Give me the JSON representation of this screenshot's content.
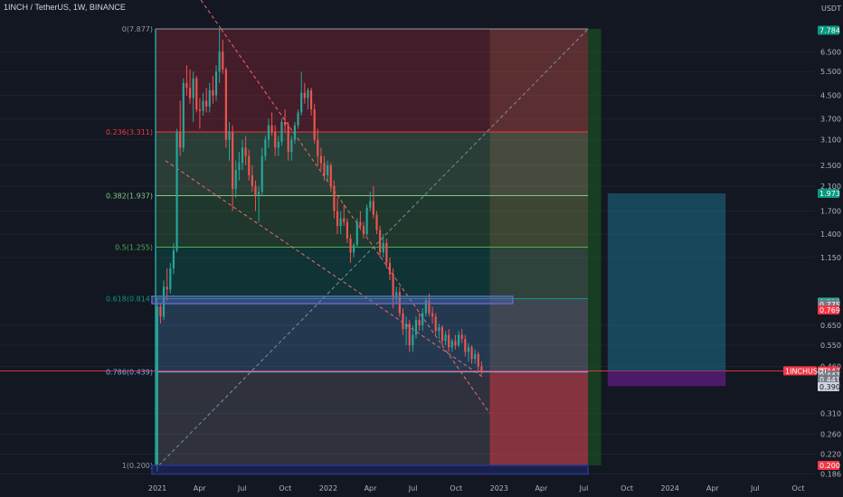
{
  "header": {
    "symbol": "1INCH / TetherUS",
    "separator": ", ",
    "interval": "1W",
    "exchange": "BINANCE"
  },
  "price_axis": {
    "currency": "USDT",
    "ticks": [
      "6.500",
      "5.500",
      "4.500",
      "3.700",
      "3.100",
      "2.500",
      "2.100",
      "1.700",
      "1.400",
      "1.150",
      "0.650",
      "0.550",
      "0.460",
      "0.310",
      "0.260",
      "0.220",
      "0.186"
    ]
  },
  "time_axis": {
    "labels": [
      "2021",
      "Apr",
      "Jul",
      "Oct",
      "2022",
      "Apr",
      "Jul",
      "Oct",
      "2023",
      "Apr",
      "Jul",
      "Oct",
      "2024",
      "Apr",
      "Jul",
      "Oct"
    ]
  },
  "fib_levels": [
    {
      "label": "0(7.877)",
      "price": 7.877,
      "color": "#9598a1"
    },
    {
      "label": "0.236(3.311)",
      "price": 3.311,
      "color": "#f23645"
    },
    {
      "label": "0.382(1.937)",
      "price": 1.937,
      "color": "#81c784"
    },
    {
      "label": "0.5(1.255)",
      "price": 1.255,
      "color": "#4caf50"
    },
    {
      "label": "0.618(0.814)",
      "price": 0.814,
      "color": "#089981"
    },
    {
      "label": "0.786(0.439)",
      "price": 0.439,
      "color": "#64b5f6"
    },
    {
      "label": "1(0.200)",
      "price": 0.2,
      "color": "#9598a1"
    }
  ],
  "price_tags": [
    {
      "text": "7.784",
      "price": 7.784,
      "bg": "#089981",
      "fg": "#ffffff"
    },
    {
      "text": "1.973",
      "price": 1.973,
      "bg": "#089981",
      "fg": "#ffffff"
    },
    {
      "text": "0.790",
      "price": 0.79,
      "bg": "#26a69a",
      "fg": "#ffffff"
    },
    {
      "text": "0.775",
      "price": 0.775,
      "bg": "#787b86",
      "fg": "#ffffff"
    },
    {
      "text": "0.769",
      "price": 0.74,
      "bg": "#f23645",
      "fg": "#ffffff"
    },
    {
      "text": "0.443",
      "price": 0.443,
      "bg": "#f23645",
      "fg": "#ffffff"
    },
    {
      "text": "0.443",
      "price": 0.428,
      "bg": "#787b86",
      "fg": "#ffffff"
    },
    {
      "text": "0.441",
      "price": 0.412,
      "bg": "#787b86",
      "fg": "#ffffff"
    },
    {
      "text": "0.390",
      "price": 0.39,
      "bg": "#5b6aa0",
      "fg": "#ffffff"
    },
    {
      "text": "0.390",
      "price": 0.388,
      "bg": "#d1d4dc",
      "fg": "#131722"
    },
    {
      "text": "0.200",
      "price": 0.2,
      "bg": "#f23645",
      "fg": "#ffffff"
    }
  ],
  "symbol_tag": {
    "text": "1INCHUSDT",
    "price": 0.443
  },
  "colors": {
    "up": "#26a69a",
    "down": "#ef5350",
    "background": "#131722",
    "position_profit": "#1e6f8a",
    "position_loss": "#7b1fa2"
  },
  "chart_data": {
    "type": "candlestick",
    "interval": "1W",
    "y_scale": "log",
    "x_start": "2020-12-28",
    "ohlc": [
      [
        0.2,
        0.82,
        0.19,
        0.76
      ],
      [
        0.76,
        0.78,
        0.66,
        0.7
      ],
      [
        0.7,
        0.95,
        0.68,
        0.9
      ],
      [
        0.9,
        1.05,
        0.8,
        0.88
      ],
      [
        0.88,
        1.1,
        0.85,
        1.05
      ],
      [
        1.05,
        1.3,
        1.0,
        1.22
      ],
      [
        1.22,
        3.4,
        1.2,
        3.3
      ],
      [
        3.3,
        4.3,
        2.7,
        2.9
      ],
      [
        2.9,
        5.2,
        2.8,
        5.0
      ],
      [
        5.0,
        5.8,
        4.5,
        4.8
      ],
      [
        4.8,
        5.6,
        4.2,
        4.4
      ],
      [
        4.4,
        5.5,
        3.6,
        5.2
      ],
      [
        5.2,
        5.3,
        3.9,
        4.0
      ],
      [
        4.0,
        4.4,
        3.4,
        3.95
      ],
      [
        3.95,
        4.6,
        3.8,
        4.3
      ],
      [
        4.3,
        4.8,
        3.9,
        4.1
      ],
      [
        4.1,
        5.0,
        3.9,
        4.7
      ],
      [
        4.7,
        5.3,
        4.2,
        4.5
      ],
      [
        4.5,
        5.8,
        4.3,
        5.5
      ],
      [
        5.5,
        7.88,
        5.0,
        6.5
      ],
      [
        6.5,
        7.2,
        5.4,
        5.6
      ],
      [
        5.6,
        5.7,
        2.9,
        3.1
      ],
      [
        3.1,
        3.6,
        2.6,
        3.3
      ],
      [
        3.3,
        3.5,
        1.7,
        2.05
      ],
      [
        2.05,
        2.6,
        1.9,
        2.4
      ],
      [
        2.4,
        2.8,
        2.2,
        2.55
      ],
      [
        2.55,
        3.1,
        2.4,
        2.9
      ],
      [
        2.9,
        3.2,
        2.5,
        2.7
      ],
      [
        2.7,
        2.85,
        2.2,
        2.3
      ],
      [
        2.3,
        2.5,
        2.0,
        2.1
      ],
      [
        2.1,
        2.2,
        1.7,
        1.95
      ],
      [
        1.95,
        2.1,
        1.55,
        2.0
      ],
      [
        2.0,
        2.9,
        1.95,
        2.7
      ],
      [
        2.7,
        3.2,
        2.6,
        3.1
      ],
      [
        3.1,
        3.7,
        2.9,
        3.5
      ],
      [
        3.5,
        3.9,
        3.2,
        3.3
      ],
      [
        3.3,
        3.5,
        2.7,
        2.9
      ],
      [
        2.9,
        3.2,
        2.7,
        3.05
      ],
      [
        3.05,
        3.7,
        2.95,
        3.6
      ],
      [
        3.6,
        4.0,
        3.3,
        3.5
      ],
      [
        3.5,
        3.6,
        2.6,
        2.8
      ],
      [
        2.8,
        3.2,
        2.6,
        3.1
      ],
      [
        3.1,
        3.6,
        3.0,
        3.5
      ],
      [
        3.5,
        4.0,
        3.4,
        3.9
      ],
      [
        3.9,
        5.5,
        3.8,
        4.6
      ],
      [
        4.6,
        5.0,
        4.2,
        4.4
      ],
      [
        4.4,
        4.8,
        4.0,
        4.7
      ],
      [
        4.7,
        4.8,
        3.8,
        4.0
      ],
      [
        4.0,
        4.2,
        3.0,
        3.1
      ],
      [
        3.1,
        3.4,
        2.5,
        2.7
      ],
      [
        2.7,
        2.9,
        2.4,
        2.55
      ],
      [
        2.55,
        2.7,
        2.2,
        2.3
      ],
      [
        2.3,
        2.6,
        2.2,
        2.5
      ],
      [
        2.5,
        2.55,
        2.0,
        2.1
      ],
      [
        2.1,
        2.2,
        1.6,
        1.7
      ],
      [
        1.7,
        1.9,
        1.4,
        1.5
      ],
      [
        1.5,
        1.7,
        1.4,
        1.6
      ],
      [
        1.6,
        1.8,
        1.5,
        1.55
      ],
      [
        1.55,
        1.6,
        1.3,
        1.35
      ],
      [
        1.35,
        1.4,
        1.1,
        1.2
      ],
      [
        1.2,
        1.3,
        1.15,
        1.28
      ],
      [
        1.28,
        1.6,
        1.25,
        1.55
      ],
      [
        1.55,
        1.7,
        1.45,
        1.5
      ],
      [
        1.5,
        1.55,
        1.35,
        1.4
      ],
      [
        1.4,
        1.8,
        1.38,
        1.75
      ],
      [
        1.75,
        2.0,
        1.7,
        1.85
      ],
      [
        1.85,
        2.1,
        1.6,
        1.65
      ],
      [
        1.65,
        1.7,
        1.4,
        1.45
      ],
      [
        1.45,
        1.5,
        1.15,
        1.2
      ],
      [
        1.2,
        1.4,
        1.15,
        1.3
      ],
      [
        1.3,
        1.35,
        1.05,
        1.1
      ],
      [
        1.1,
        1.15,
        0.95,
        1.0
      ],
      [
        1.0,
        1.05,
        0.75,
        0.82
      ],
      [
        0.82,
        0.9,
        0.78,
        0.86
      ],
      [
        0.86,
        0.9,
        0.7,
        0.72
      ],
      [
        0.72,
        0.75,
        0.6,
        0.63
      ],
      [
        0.63,
        0.7,
        0.55,
        0.66
      ],
      [
        0.66,
        0.68,
        0.52,
        0.55
      ],
      [
        0.55,
        0.65,
        0.52,
        0.6
      ],
      [
        0.6,
        0.7,
        0.58,
        0.68
      ],
      [
        0.68,
        0.72,
        0.62,
        0.65
      ],
      [
        0.65,
        0.75,
        0.62,
        0.72
      ],
      [
        0.72,
        0.82,
        0.7,
        0.8
      ],
      [
        0.8,
        0.85,
        0.7,
        0.72
      ],
      [
        0.72,
        0.76,
        0.66,
        0.7
      ],
      [
        0.7,
        0.72,
        0.6,
        0.62
      ],
      [
        0.62,
        0.66,
        0.58,
        0.64
      ],
      [
        0.64,
        0.65,
        0.55,
        0.57
      ],
      [
        0.57,
        0.62,
        0.55,
        0.6
      ],
      [
        0.6,
        0.63,
        0.52,
        0.54
      ],
      [
        0.54,
        0.58,
        0.52,
        0.57
      ],
      [
        0.57,
        0.6,
        0.53,
        0.55
      ],
      [
        0.55,
        0.62,
        0.54,
        0.6
      ],
      [
        0.6,
        0.63,
        0.56,
        0.58
      ],
      [
        0.58,
        0.6,
        0.5,
        0.52
      ],
      [
        0.52,
        0.56,
        0.48,
        0.54
      ],
      [
        0.54,
        0.55,
        0.47,
        0.49
      ],
      [
        0.49,
        0.53,
        0.47,
        0.51
      ],
      [
        0.51,
        0.52,
        0.44,
        0.46
      ],
      [
        0.46,
        0.48,
        0.43,
        0.443
      ]
    ],
    "x_range": [
      "2020-12-28",
      "2024-10-31"
    ],
    "y_range": [
      0.186,
      8.0
    ],
    "y_ticks": [
      6.5,
      5.5,
      4.5,
      3.7,
      3.1,
      2.5,
      2.1,
      1.7,
      1.4,
      1.15,
      0.65,
      0.55,
      0.46,
      0.31,
      0.26,
      0.22,
      0.186
    ],
    "x_ticks": [
      "2021",
      "Apr",
      "Jul",
      "Oct",
      "2022",
      "Apr",
      "Jul",
      "Oct",
      "2023",
      "Apr",
      "Jul",
      "Oct",
      "2024",
      "Apr",
      "Jul",
      "Oct"
    ],
    "fib_retracement": {
      "from_date": "2020-12-28",
      "to_date": "2023-07-10",
      "zones": [
        {
          "from": 0,
          "to": 0.236,
          "color": "#f23645"
        },
        {
          "from": 0.236,
          "to": 0.382,
          "color": "#81c784"
        },
        {
          "from": 0.382,
          "to": 0.5,
          "color": "#4caf50"
        },
        {
          "from": 0.5,
          "to": 0.618,
          "color": "#089981"
        },
        {
          "from": 0.618,
          "to": 0.786,
          "color": "#64b5f6"
        },
        {
          "from": 0.786,
          "to": 1,
          "color": "#9598a1"
        }
      ],
      "projection_overlay": {
        "from_date": "2022-12-12",
        "to_date": "2023-07-10",
        "color": "#f4a460"
      }
    },
    "trend_lines": [
      {
        "from": [
          "2021-05-17",
          7.877
        ],
        "to": [
          "2022-12-12",
          0.31
        ],
        "style": "dashed",
        "color": "#f06a6a"
      },
      {
        "from": [
          "2021-01-18",
          2.6
        ],
        "to": [
          "2022-11-28",
          0.42
        ],
        "style": "dashed",
        "color": "#f06a6a"
      },
      {
        "from": [
          "2021-01-04",
          0.2
        ],
        "to": [
          "2023-07-10",
          7.877
        ],
        "style": "dashed",
        "color": "#78909c"
      }
    ],
    "rectangles": [
      {
        "from": [
          "2020-12-28",
          0.83
        ],
        "to": [
          "2023-01-30",
          0.78
        ],
        "color": "#5c6bc0"
      },
      {
        "from": [
          "2020-12-28",
          0.2
        ],
        "to": [
          "2023-07-10",
          0.186
        ],
        "color": "#283593"
      }
    ],
    "long_position": {
      "from_date": "2023-08-21",
      "to_date": "2024-04-29",
      "entry": 0.443,
      "target": 1.973,
      "stop": 0.39
    },
    "short_red_zone": {
      "from_date": "2022-12-12",
      "to_date": "2023-07-10",
      "top": 0.443,
      "bottom": 0.2
    },
    "green_strip": {
      "from_date": "2023-07-10",
      "to_date": "2023-08-07",
      "top": 7.877,
      "bottom": 0.2
    }
  }
}
